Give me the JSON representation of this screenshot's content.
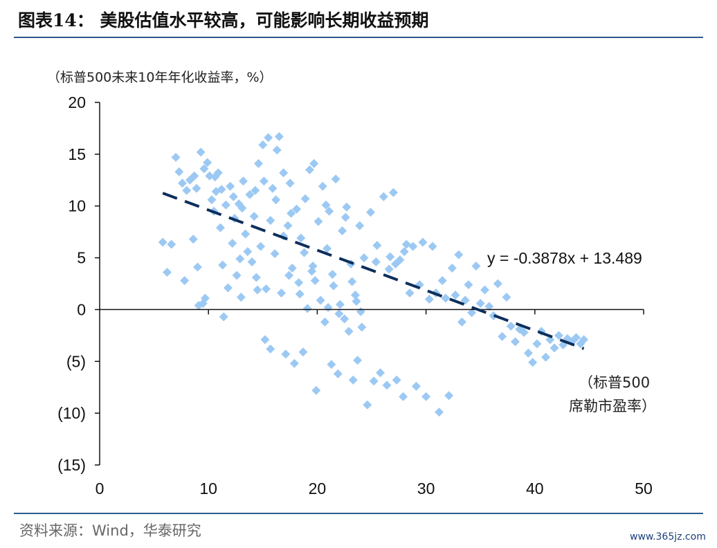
{
  "header": {
    "title": "图表14：  美股估值水平较高，可能影响长期收益预期"
  },
  "footer": {
    "source": "资料来源：Wind，华泰研究",
    "watermark": "www.365jz.com"
  },
  "colors": {
    "points": "#9cc9f3",
    "trendline": "#0d2f5c",
    "rule": "#2b5b8e"
  },
  "chart_data": {
    "type": "scatter",
    "title": "",
    "ylabel": "（标普500未来10年年化收益率，%）",
    "xlabel_lines": [
      "（标普500",
      "席勒市盈率）"
    ],
    "xlim": [
      0,
      50
    ],
    "ylim": [
      -15,
      20
    ],
    "xticks": [
      0,
      10,
      20,
      30,
      40,
      50
    ],
    "xtick_labels": [
      "0",
      "10",
      "20",
      "30",
      "40",
      "50"
    ],
    "yticks": [
      20,
      15,
      10,
      5,
      0,
      -5,
      -10,
      -15
    ],
    "ytick_labels": [
      "20",
      "15",
      "10",
      "5",
      "0",
      "(5)",
      "(10)",
      "(15)"
    ],
    "grid": false,
    "trendline": {
      "slope": -0.3878,
      "intercept": 13.489,
      "x_range": [
        5.8,
        44.5
      ],
      "equation": "y = -0.3878x + 13.489"
    },
    "series": [
      {
        "points": [
          [
            5.8,
            6.5
          ],
          [
            6.2,
            3.6
          ],
          [
            6.6,
            6.3
          ],
          [
            7.0,
            14.7
          ],
          [
            7.3,
            13.3
          ],
          [
            7.6,
            12.2
          ],
          [
            7.8,
            2.8
          ],
          [
            8.0,
            11.5
          ],
          [
            8.3,
            12.5
          ],
          [
            8.6,
            6.8
          ],
          [
            8.9,
            11.7
          ],
          [
            9.0,
            4.1
          ],
          [
            9.1,
            0.4
          ],
          [
            9.3,
            15.2
          ],
          [
            9.5,
            0.6
          ],
          [
            9.7,
            1.1
          ],
          [
            9.9,
            14.2
          ],
          [
            10.1,
            12.9
          ],
          [
            10.3,
            10.6
          ],
          [
            10.5,
            9.5
          ],
          [
            10.7,
            11.4
          ],
          [
            10.9,
            13.2
          ],
          [
            11.1,
            7.9
          ],
          [
            11.3,
            4.3
          ],
          [
            11.4,
            -0.7
          ],
          [
            11.6,
            10.1
          ],
          [
            11.8,
            2.1
          ],
          [
            12.0,
            11.9
          ],
          [
            12.2,
            6.4
          ],
          [
            12.4,
            8.8
          ],
          [
            12.6,
            3.3
          ],
          [
            12.8,
            10.2
          ],
          [
            13.0,
            1.2
          ],
          [
            13.2,
            12.4
          ],
          [
            13.4,
            7.3
          ],
          [
            13.6,
            5.6
          ],
          [
            13.8,
            11.1
          ],
          [
            14.0,
            4.6
          ],
          [
            14.2,
            9.0
          ],
          [
            14.4,
            3.1
          ],
          [
            14.6,
            14.1
          ],
          [
            14.8,
            6.1
          ],
          [
            15.0,
            15.9
          ],
          [
            15.2,
            -2.9
          ],
          [
            15.3,
            2.0
          ],
          [
            15.5,
            16.6
          ],
          [
            15.7,
            -3.8
          ],
          [
            15.9,
            11.7
          ],
          [
            16.1,
            5.4
          ],
          [
            16.3,
            15.4
          ],
          [
            16.5,
            16.7
          ],
          [
            16.7,
            1.6
          ],
          [
            16.9,
            13.2
          ],
          [
            17.1,
            -4.3
          ],
          [
            17.3,
            8.1
          ],
          [
            17.5,
            12.2
          ],
          [
            17.7,
            4.0
          ],
          [
            17.9,
            -5.2
          ],
          [
            18.1,
            9.7
          ],
          [
            18.3,
            2.6
          ],
          [
            18.5,
            6.9
          ],
          [
            18.7,
            -4.1
          ],
          [
            18.9,
            10.7
          ],
          [
            19.1,
            0.1
          ],
          [
            19.3,
            13.5
          ],
          [
            19.5,
            3.7
          ],
          [
            19.7,
            14.1
          ],
          [
            19.9,
            -7.8
          ],
          [
            20.1,
            8.5
          ],
          [
            20.3,
            0.9
          ],
          [
            20.5,
            11.9
          ],
          [
            20.7,
            -1.2
          ],
          [
            20.9,
            5.9
          ],
          [
            21.1,
            9.5
          ],
          [
            21.3,
            -5.3
          ],
          [
            21.5,
            2.3
          ],
          [
            21.7,
            12.6
          ],
          [
            21.9,
            -6.2
          ],
          [
            22.1,
            0.5
          ],
          [
            22.3,
            7.6
          ],
          [
            22.5,
            -0.9
          ],
          [
            22.7,
            9.9
          ],
          [
            22.9,
            -2.1
          ],
          [
            23.1,
            4.4
          ],
          [
            23.3,
            -6.8
          ],
          [
            23.5,
            1.4
          ],
          [
            23.7,
            -4.9
          ],
          [
            23.9,
            8.1
          ],
          [
            24.1,
            -1.7
          ],
          [
            24.3,
            5.0
          ],
          [
            24.6,
            -9.2
          ],
          [
            24.9,
            9.4
          ],
          [
            25.2,
            -6.9
          ],
          [
            25.5,
            6.2
          ],
          [
            25.8,
            -6.1
          ],
          [
            26.1,
            10.9
          ],
          [
            26.4,
            -7.3
          ],
          [
            26.7,
            5.1
          ],
          [
            27.0,
            11.3
          ],
          [
            27.3,
            -6.8
          ],
          [
            27.6,
            4.8
          ],
          [
            27.9,
            -8.4
          ],
          [
            28.2,
            6.3
          ],
          [
            28.5,
            1.6
          ],
          [
            28.8,
            6.1
          ],
          [
            29.1,
            -7.4
          ],
          [
            29.4,
            2.4
          ],
          [
            29.7,
            6.5
          ],
          [
            30.0,
            -8.4
          ],
          [
            30.3,
            1.0
          ],
          [
            30.6,
            6.1
          ],
          [
            30.9,
            1.6
          ],
          [
            31.2,
            -9.9
          ],
          [
            31.5,
            2.8
          ],
          [
            31.8,
            1.1
          ],
          [
            32.1,
            -8.3
          ],
          [
            32.4,
            4.0
          ],
          [
            32.7,
            1.4
          ],
          [
            33.0,
            5.3
          ],
          [
            33.3,
            -1.2
          ],
          [
            33.6,
            0.9
          ],
          [
            33.9,
            2.4
          ],
          [
            34.2,
            -0.3
          ],
          [
            34.6,
            4.2
          ],
          [
            35.0,
            0.6
          ],
          [
            35.4,
            1.9
          ],
          [
            35.8,
            0.3
          ],
          [
            36.2,
            -0.6
          ],
          [
            36.6,
            2.5
          ],
          [
            37.0,
            -2.6
          ],
          [
            37.4,
            1.2
          ],
          [
            37.8,
            -1.6
          ],
          [
            38.2,
            -3.1
          ],
          [
            38.6,
            -1.9
          ],
          [
            39.0,
            -2.2
          ],
          [
            39.4,
            -4.2
          ],
          [
            39.8,
            -5.1
          ],
          [
            40.2,
            -3.3
          ],
          [
            40.6,
            -2.1
          ],
          [
            41.0,
            -4.6
          ],
          [
            41.4,
            -2.9
          ],
          [
            41.8,
            -3.7
          ],
          [
            42.2,
            -2.5
          ],
          [
            42.6,
            -3.4
          ],
          [
            43.0,
            -2.8
          ],
          [
            43.4,
            -3.1
          ],
          [
            43.8,
            -2.7
          ],
          [
            44.2,
            -3.3
          ],
          [
            44.5,
            -2.9
          ],
          [
            13.1,
            9.8
          ],
          [
            14.3,
            11.5
          ],
          [
            15.7,
            8.6
          ],
          [
            16.9,
            7.1
          ],
          [
            17.6,
            9.3
          ],
          [
            18.8,
            5.5
          ],
          [
            19.6,
            4.2
          ],
          [
            20.8,
            10.1
          ],
          [
            21.4,
            3.4
          ],
          [
            22.6,
            8.9
          ],
          [
            23.2,
            2.7
          ],
          [
            11.2,
            11.6
          ],
          [
            12.3,
            10.9
          ],
          [
            10.6,
            12.8
          ],
          [
            9.6,
            13.6
          ],
          [
            8.7,
            12.9
          ],
          [
            15.1,
            12.4
          ],
          [
            16.2,
            10.6
          ],
          [
            17.4,
            3.3
          ],
          [
            18.4,
            1.5
          ],
          [
            19.8,
            2.8
          ],
          [
            21.0,
            0.2
          ],
          [
            22.0,
            -0.4
          ],
          [
            23.6,
            0.8
          ],
          [
            24.0,
            -0.2
          ],
          [
            25.4,
            4.6
          ],
          [
            26.6,
            3.9
          ],
          [
            27.2,
            4.4
          ],
          [
            28.0,
            5.6
          ],
          [
            12.9,
            4.9
          ],
          [
            14.5,
            1.9
          ]
        ]
      }
    ]
  }
}
